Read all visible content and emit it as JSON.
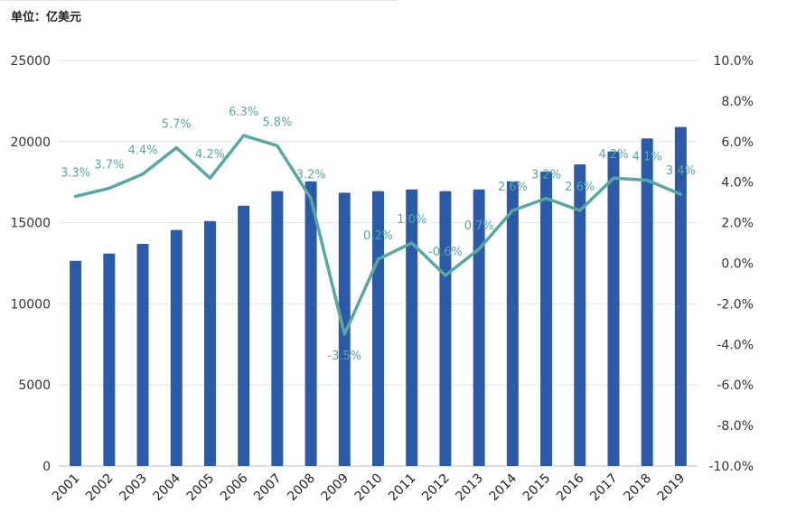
{
  "unit_label": "单位：亿美元",
  "chart_data": {
    "type": "bar+line",
    "categories": [
      "2001",
      "2002",
      "2003",
      "2004",
      "2005",
      "2006",
      "2007",
      "2008",
      "2009",
      "2010",
      "2011",
      "2012",
      "2013",
      "2014",
      "2015",
      "2016",
      "2017",
      "2018",
      "2019"
    ],
    "series": [
      {
        "type": "bar",
        "axis": "left",
        "color": "#2b5aa9",
        "values": [
          12650,
          13100,
          13700,
          14550,
          15100,
          16050,
          16950,
          17550,
          16850,
          16950,
          17050,
          16950,
          17050,
          17550,
          18150,
          18600,
          19400,
          20200,
          20900
        ]
      },
      {
        "type": "line",
        "axis": "right",
        "color": "#5aa7a1",
        "values": [
          3.3,
          3.7,
          4.4,
          5.7,
          4.2,
          6.3,
          5.8,
          3.2,
          -3.5,
          0.2,
          1.0,
          -0.6,
          0.7,
          2.6,
          3.2,
          2.6,
          4.2,
          4.1,
          3.4
        ],
        "labels": [
          "3.3%",
          "3.7%",
          "4.4%",
          "5.7%",
          "4.2%",
          "6.3%",
          "5.8%",
          "3.2%",
          "-3.5%",
          "0.2%",
          "1.0%",
          "-0.6%",
          "0.7%",
          "2.6%",
          "3.2%",
          "2.6%",
          "4.2%",
          "4.1%",
          "3.4%"
        ]
      }
    ],
    "y_left": {
      "min": 0,
      "max": 25000,
      "ticks": [
        "0",
        "5000",
        "10000",
        "15000",
        "20000",
        "25000"
      ]
    },
    "y_right": {
      "min": -10,
      "max": 10,
      "ticks": [
        "-10.0%",
        "-8.0%",
        "-6.0%",
        "-4.0%",
        "-2.0%",
        "0.0%",
        "2.0%",
        "4.0%",
        "6.0%",
        "8.0%",
        "10.0%"
      ]
    },
    "grid": true,
    "legend": "none"
  }
}
